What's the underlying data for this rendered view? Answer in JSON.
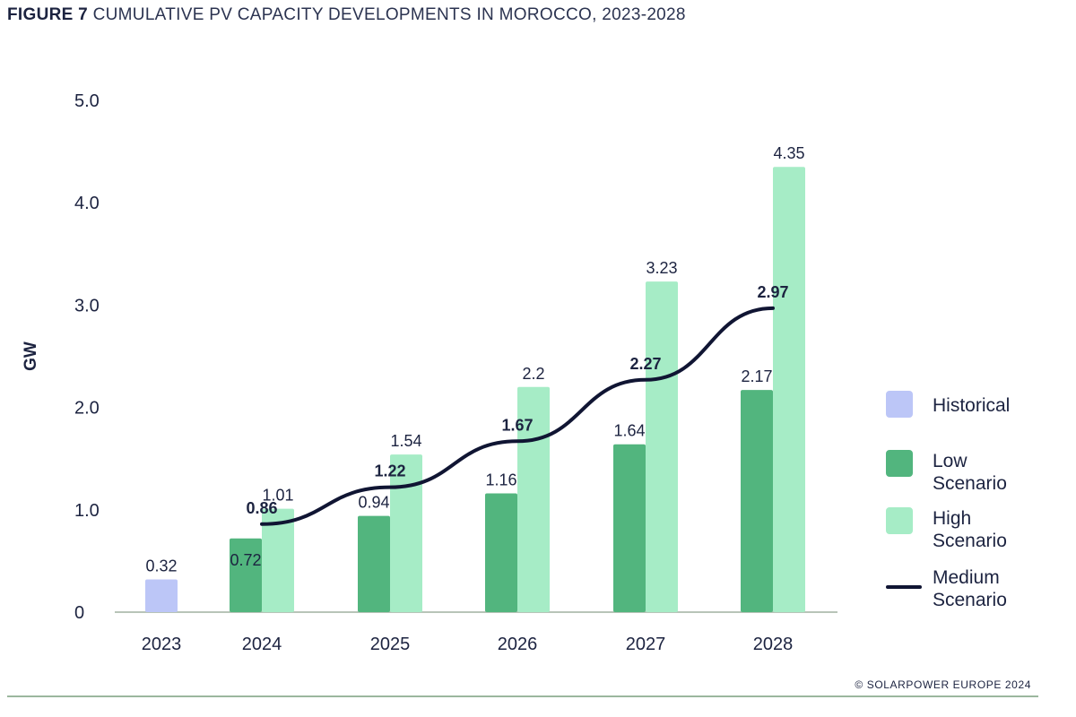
{
  "figure": {
    "number": "FIGURE 7",
    "title": "CUMULATIVE PV CAPACITY DEVELOPMENTS IN MOROCCO, 2023-2028"
  },
  "footer": {
    "copyright": "© SOLARPOWER EUROPE 2024"
  },
  "legend": {
    "historical": "Historical",
    "low": "Low Scenario",
    "high": "High Scenario",
    "medium": "Medium Scenario"
  },
  "colors": {
    "historical": "#bcc6f7",
    "low": "#52b57e",
    "high": "#a6ecc6",
    "medium": "#101533",
    "axis": "#b8c4b8"
  },
  "chart_data": {
    "type": "bar",
    "title": "CUMULATIVE PV CAPACITY DEVELOPMENTS IN MOROCCO, 2023-2028",
    "ylabel": "GW",
    "xlabel": "",
    "ylim": [
      0,
      5
    ],
    "yticks": [
      "0",
      "1.0",
      "2.0",
      "3.0",
      "4.0",
      "5.0"
    ],
    "categories": [
      "2023",
      "2024",
      "2025",
      "2026",
      "2027",
      "2028"
    ],
    "grid": false,
    "legend_position": "right",
    "series": [
      {
        "name": "Historical",
        "type": "bar",
        "values": [
          0.32,
          null,
          null,
          null,
          null,
          null
        ]
      },
      {
        "name": "Low Scenario",
        "type": "bar",
        "values": [
          null,
          0.72,
          0.94,
          1.16,
          1.64,
          2.17
        ]
      },
      {
        "name": "High Scenario",
        "type": "bar",
        "values": [
          null,
          1.01,
          1.54,
          2.2,
          3.23,
          4.35
        ]
      },
      {
        "name": "Medium Scenario",
        "type": "line",
        "values": [
          null,
          0.86,
          1.22,
          1.67,
          2.27,
          2.97
        ]
      }
    ],
    "data_labels": {
      "historical": [
        "0.32",
        null,
        null,
        null,
        null,
        null
      ],
      "low": [
        null,
        "0.72",
        "0.94",
        "1.16",
        "1.64",
        "2.17"
      ],
      "high": [
        null,
        "1.01",
        "1.54",
        "2.2",
        "3.23",
        "4.35"
      ],
      "medium": [
        null,
        "0.86",
        "1.22",
        "1.67",
        "2.27",
        "2.97"
      ]
    }
  }
}
